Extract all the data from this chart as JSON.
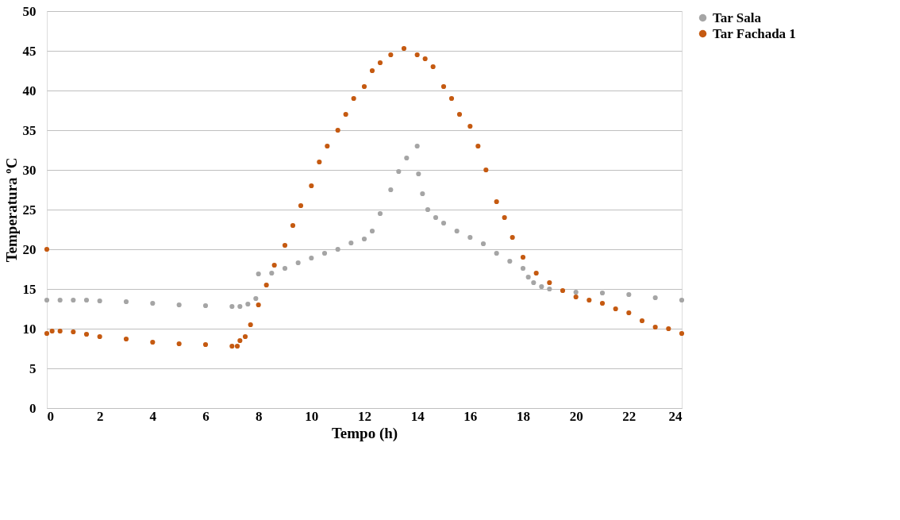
{
  "chart_data": {
    "type": "scatter",
    "xlabel": "Tempo (h)",
    "ylabel": "Temperatura ºC",
    "xlim": [
      0,
      24
    ],
    "xticks": [
      0,
      2,
      4,
      6,
      8,
      10,
      12,
      14,
      16,
      18,
      20,
      22,
      24
    ],
    "ylim": [
      0,
      50
    ],
    "yticks": [
      0,
      5,
      10,
      15,
      20,
      25,
      30,
      35,
      40,
      45,
      50
    ],
    "grid": "y",
    "legend": "right",
    "marker": "circle",
    "series": [
      {
        "name": "Tar Sala",
        "color": "#a5a5a5",
        "x": [
          0,
          0.5,
          1,
          1.5,
          2,
          3,
          4,
          5,
          6,
          7,
          7.3,
          7.6,
          7.9,
          8.0,
          8.5,
          9,
          9.5,
          10,
          10.5,
          11,
          11.5,
          12,
          12.3,
          12.6,
          13,
          13.3,
          13.6,
          14,
          14.05,
          14.2,
          14.4,
          14.7,
          15,
          15.5,
          16,
          16.5,
          17,
          17.5,
          18,
          18.2,
          18.4,
          18.7,
          19,
          19.5,
          20,
          21,
          22,
          23,
          24
        ],
        "values": [
          13.6,
          13.6,
          13.6,
          13.6,
          13.5,
          13.4,
          13.2,
          13.0,
          12.9,
          12.8,
          12.8,
          13.1,
          13.8,
          16.9,
          17.0,
          17.6,
          18.3,
          18.9,
          19.5,
          20.0,
          20.8,
          21.3,
          22.3,
          24.5,
          27.5,
          29.8,
          31.5,
          33.0,
          29.5,
          27.0,
          25.0,
          24.0,
          23.3,
          22.3,
          21.5,
          20.7,
          19.5,
          18.5,
          17.6,
          16.5,
          15.8,
          15.3,
          15.0,
          null,
          14.6,
          14.5,
          14.3,
          13.9,
          13.6
        ]
      },
      {
        "name": "Tar Fachada 1",
        "color": "#c55a11",
        "x": [
          0,
          0,
          0.2,
          0.5,
          1,
          1.5,
          2,
          3,
          4,
          5,
          6,
          7,
          7.2,
          7.3,
          7.5,
          7.7,
          8,
          8.3,
          8.6,
          9,
          9.3,
          9.6,
          10,
          10.3,
          10.6,
          11,
          11.3,
          11.6,
          12,
          12.3,
          12.6,
          13,
          13.5,
          14,
          14.3,
          14.6,
          15,
          15.3,
          15.6,
          16,
          16.3,
          16.6,
          17,
          17.3,
          17.6,
          18,
          18.5,
          19,
          19.5,
          20,
          20.5,
          21,
          21.5,
          22,
          22.5,
          23,
          23.5,
          24
        ],
        "values": [
          20.0,
          9.4,
          9.7,
          9.7,
          9.6,
          9.3,
          9.0,
          8.7,
          8.3,
          8.1,
          8.0,
          7.8,
          7.8,
          8.5,
          9.0,
          10.5,
          13.0,
          15.5,
          18.0,
          20.5,
          23.0,
          25.5,
          28.0,
          31.0,
          33.0,
          35.0,
          37.0,
          39.0,
          40.5,
          42.5,
          43.5,
          44.5,
          45.3,
          44.5,
          44.0,
          43.0,
          40.5,
          39.0,
          37.0,
          35.5,
          33.0,
          30.0,
          26.0,
          24.0,
          21.5,
          19.0,
          17.0,
          15.8,
          14.8,
          14.0,
          13.6,
          13.2,
          12.5,
          12.0,
          11.0,
          10.2,
          10.0,
          9.4
        ]
      }
    ]
  }
}
